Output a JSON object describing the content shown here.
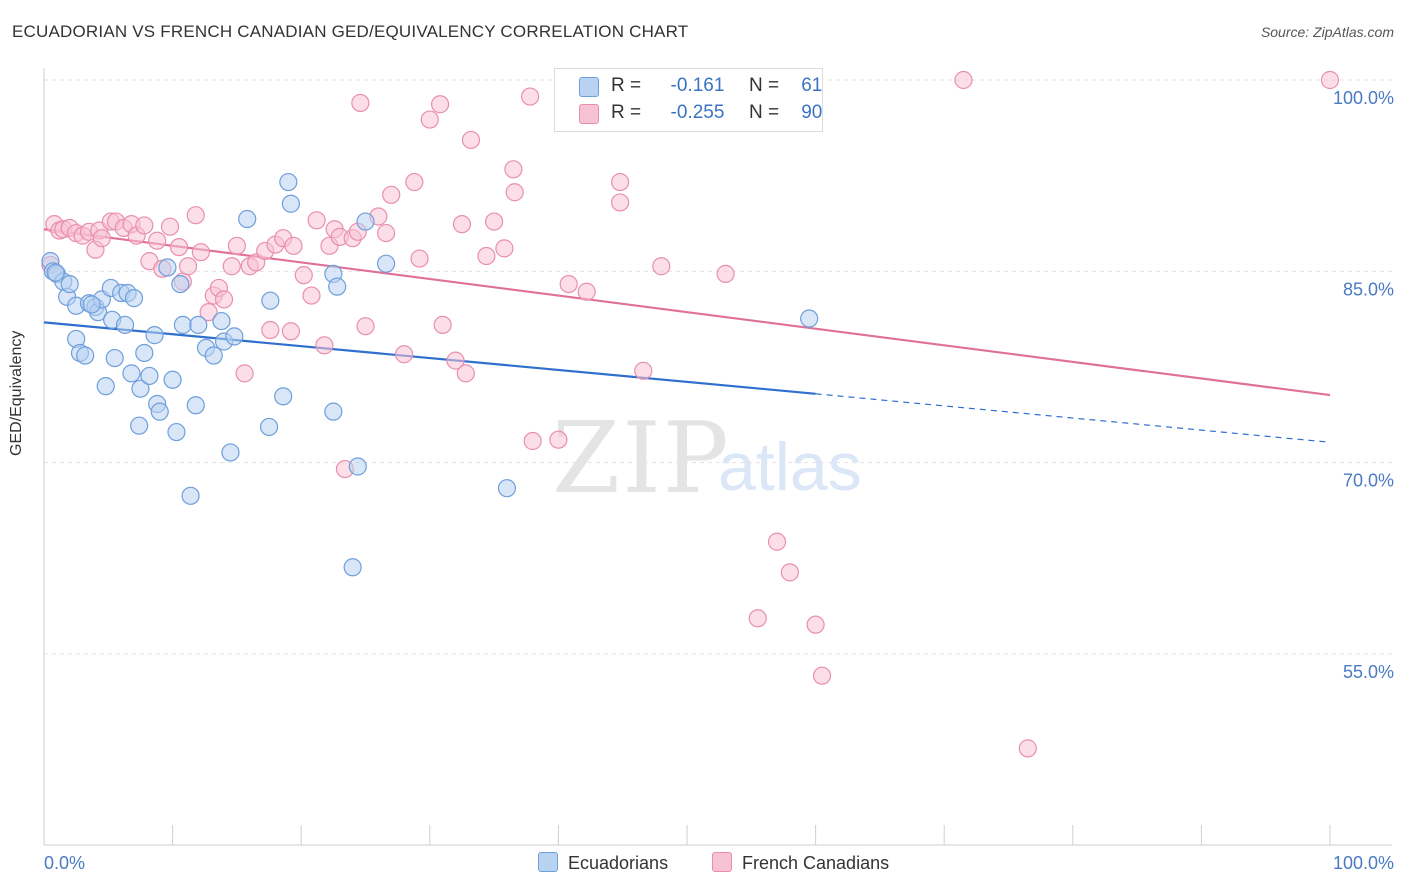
{
  "title": "ECUADORIAN VS FRENCH CANADIAN GED/EQUIVALENCY CORRELATION CHART",
  "source": "Source: ZipAtlas.com",
  "watermark": {
    "zip": "ZIP",
    "atlas": "atlas"
  },
  "legend": {
    "rows": [
      {
        "r_label": "R =",
        "r_value": "-0.161",
        "n_label": "N =",
        "n_value": "61"
      },
      {
        "r_label": "R =",
        "r_value": "-0.255",
        "n_label": "N =",
        "n_value": "90"
      }
    ]
  },
  "chart_data": {
    "type": "scatter",
    "title": "ECUADORIAN VS FRENCH CANADIAN GED/EQUIVALENCY CORRELATION CHART",
    "xlabel": "",
    "ylabel": "GED/Equivalency",
    "xlim": [
      0,
      100
    ],
    "ylim": [
      40,
      102
    ],
    "x_tick_labels": [
      "0.0%",
      "100.0%"
    ],
    "y_ticks": [
      55,
      70,
      85,
      100
    ],
    "y_tick_labels": [
      "55.0%",
      "70.0%",
      "85.0%",
      "100.0%"
    ],
    "grid": "horizontal dashed",
    "legend_position": "top-center",
    "colors": {
      "ecuadorians_fill": "#b8d2f2",
      "ecuadorians_stroke": "#6f9fda",
      "ecuadorians_line": "#2f6fce",
      "french_fill": "#f7c3d3",
      "french_stroke": "#e98fae",
      "french_line": "#e0709a",
      "tick_label": "#4a7ac4"
    },
    "series": [
      {
        "name": "Ecuadorians",
        "r": -0.161,
        "n": 61,
        "trend": {
          "x0": 0,
          "y0": 81.0,
          "x1": 60,
          "y1": 75.4,
          "dash_to_x": 100,
          "dash_to_y": 71.6
        },
        "points": [
          [
            0.5,
            85.8
          ],
          [
            0.7,
            85.0
          ],
          [
            1.0,
            84.8
          ],
          [
            1.5,
            84.2
          ],
          [
            1.8,
            83.0
          ],
          [
            2.0,
            84.0
          ],
          [
            2.5,
            82.3
          ],
          [
            2.5,
            79.7
          ],
          [
            2.8,
            78.6
          ],
          [
            3.2,
            78.4
          ],
          [
            3.5,
            82.5
          ],
          [
            4.0,
            82.2
          ],
          [
            4.2,
            81.8
          ],
          [
            4.5,
            82.8
          ],
          [
            4.8,
            76.0
          ],
          [
            5.2,
            83.7
          ],
          [
            5.3,
            81.2
          ],
          [
            5.5,
            78.2
          ],
          [
            6.0,
            83.3
          ],
          [
            6.3,
            80.8
          ],
          [
            6.5,
            83.3
          ],
          [
            6.8,
            77.0
          ],
          [
            7.0,
            82.9
          ],
          [
            7.4,
            72.9
          ],
          [
            7.5,
            75.8
          ],
          [
            7.8,
            78.6
          ],
          [
            8.2,
            76.8
          ],
          [
            8.6,
            80.0
          ],
          [
            8.8,
            74.6
          ],
          [
            9.0,
            74.0
          ],
          [
            9.6,
            85.3
          ],
          [
            10.0,
            76.5
          ],
          [
            10.3,
            72.4
          ],
          [
            10.6,
            84.0
          ],
          [
            10.8,
            80.8
          ],
          [
            11.4,
            67.4
          ],
          [
            11.8,
            74.5
          ],
          [
            12.0,
            80.8
          ],
          [
            12.6,
            79.0
          ],
          [
            13.2,
            78.4
          ],
          [
            13.8,
            81.1
          ],
          [
            14.0,
            79.5
          ],
          [
            14.5,
            70.8
          ],
          [
            14.8,
            79.9
          ],
          [
            15.8,
            89.1
          ],
          [
            17.5,
            72.8
          ],
          [
            17.6,
            82.7
          ],
          [
            18.6,
            75.2
          ],
          [
            19.0,
            92.0
          ],
          [
            19.2,
            90.3
          ],
          [
            22.5,
            84.8
          ],
          [
            22.5,
            74.0
          ],
          [
            22.8,
            83.8
          ],
          [
            24.0,
            61.8
          ],
          [
            24.4,
            69.7
          ],
          [
            25.0,
            88.9
          ],
          [
            26.6,
            85.6
          ],
          [
            36.0,
            68.0
          ],
          [
            59.5,
            81.3
          ],
          [
            0.9,
            84.9
          ],
          [
            3.7,
            82.4
          ]
        ]
      },
      {
        "name": "French Canadians",
        "r": -0.255,
        "n": 90,
        "trend": {
          "x0": 0,
          "y0": 88.3,
          "x1": 100,
          "y1": 75.3
        },
        "points": [
          [
            0.5,
            85.5
          ],
          [
            0.8,
            88.7
          ],
          [
            1.2,
            88.2
          ],
          [
            1.5,
            88.3
          ],
          [
            2.0,
            88.4
          ],
          [
            2.5,
            88.0
          ],
          [
            3.0,
            87.8
          ],
          [
            3.5,
            88.1
          ],
          [
            4.0,
            86.7
          ],
          [
            4.3,
            88.2
          ],
          [
            4.5,
            87.6
          ],
          [
            5.2,
            88.9
          ],
          [
            5.6,
            88.9
          ],
          [
            6.2,
            88.4
          ],
          [
            6.8,
            88.7
          ],
          [
            7.2,
            87.8
          ],
          [
            7.8,
            88.6
          ],
          [
            8.2,
            85.8
          ],
          [
            8.8,
            87.4
          ],
          [
            9.2,
            85.2
          ],
          [
            9.8,
            88.5
          ],
          [
            10.5,
            86.9
          ],
          [
            10.8,
            84.2
          ],
          [
            11.2,
            85.4
          ],
          [
            11.8,
            89.4
          ],
          [
            12.2,
            86.5
          ],
          [
            12.8,
            81.8
          ],
          [
            13.2,
            83.1
          ],
          [
            13.6,
            83.7
          ],
          [
            14.0,
            82.8
          ],
          [
            14.6,
            85.4
          ],
          [
            15.0,
            87.0
          ],
          [
            15.6,
            77.0
          ],
          [
            16.0,
            85.4
          ],
          [
            16.5,
            85.7
          ],
          [
            17.2,
            86.6
          ],
          [
            17.6,
            80.4
          ],
          [
            18.0,
            87.1
          ],
          [
            18.6,
            87.6
          ],
          [
            19.2,
            80.3
          ],
          [
            19.4,
            87.0
          ],
          [
            20.2,
            84.7
          ],
          [
            20.8,
            83.1
          ],
          [
            21.2,
            89.0
          ],
          [
            21.8,
            79.2
          ],
          [
            22.2,
            87.0
          ],
          [
            22.6,
            88.3
          ],
          [
            23.0,
            87.7
          ],
          [
            23.4,
            69.5
          ],
          [
            24.0,
            87.6
          ],
          [
            24.4,
            88.1
          ],
          [
            24.6,
            98.2
          ],
          [
            25.0,
            80.7
          ],
          [
            26.0,
            89.3
          ],
          [
            26.6,
            88.0
          ],
          [
            27.0,
            91.0
          ],
          [
            28.0,
            78.5
          ],
          [
            28.8,
            92.0
          ],
          [
            29.2,
            86.0
          ],
          [
            30.0,
            96.9
          ],
          [
            30.8,
            98.1
          ],
          [
            31.0,
            80.8
          ],
          [
            32.0,
            78.0
          ],
          [
            32.5,
            88.7
          ],
          [
            32.8,
            77.0
          ],
          [
            33.2,
            95.3
          ],
          [
            34.4,
            86.2
          ],
          [
            35.0,
            88.9
          ],
          [
            35.8,
            86.8
          ],
          [
            36.5,
            93.0
          ],
          [
            36.6,
            91.2
          ],
          [
            37.8,
            98.7
          ],
          [
            38.0,
            71.7
          ],
          [
            40.0,
            71.8
          ],
          [
            40.8,
            84.0
          ],
          [
            42.2,
            83.4
          ],
          [
            44.8,
            92.0
          ],
          [
            44.8,
            90.4
          ],
          [
            46.6,
            77.2
          ],
          [
            47.2,
            100.0
          ],
          [
            48.0,
            85.4
          ],
          [
            53.0,
            84.8
          ],
          [
            55.5,
            57.8
          ],
          [
            57.0,
            63.8
          ],
          [
            58.0,
            61.4
          ],
          [
            60.0,
            57.3
          ],
          [
            60.5,
            53.3
          ],
          [
            71.5,
            100.0
          ],
          [
            76.5,
            47.6
          ],
          [
            100.0,
            100.0
          ]
        ]
      }
    ]
  }
}
